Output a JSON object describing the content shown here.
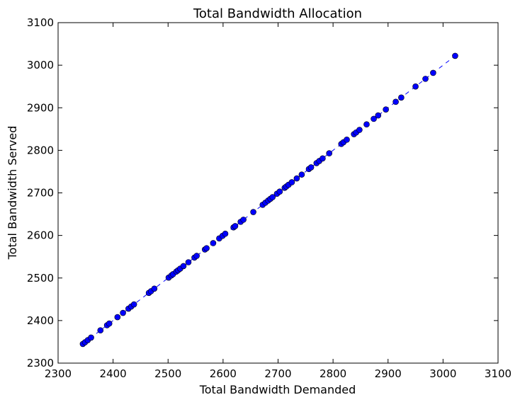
{
  "chart_data": {
    "type": "scatter",
    "title": "Total Bandwidth Allocation",
    "xlabel": "Total Bandwidth Demanded",
    "ylabel": "Total Bandwidth Served",
    "xlim": [
      2300,
      3100
    ],
    "ylim": [
      2300,
      3100
    ],
    "xticks": [
      "2300",
      "2400",
      "2500",
      "2600",
      "2700",
      "2800",
      "2900",
      "3000",
      "3100"
    ],
    "yticks": [
      "2300",
      "2400",
      "2500",
      "2600",
      "2700",
      "2800",
      "2900",
      "3000",
      "3100"
    ],
    "grid": false,
    "legend": "none",
    "reference_line": {
      "style": "dashed",
      "color": "#0000ff",
      "from": [
        2345,
        2345
      ],
      "to": [
        3022,
        3022
      ]
    },
    "series": [
      {
        "marker": "circle",
        "color": "#0000ff",
        "x": [
          2345,
          2349,
          2354,
          2360,
          2377,
          2389,
          2393,
          2408,
          2418,
          2428,
          2433,
          2438,
          2465,
          2469,
          2475,
          2501,
          2506,
          2509,
          2515,
          2518,
          2522,
          2528,
          2537,
          2548,
          2552,
          2567,
          2570,
          2582,
          2593,
          2599,
          2604,
          2619,
          2622,
          2632,
          2637,
          2655,
          2672,
          2677,
          2682,
          2686,
          2690,
          2698,
          2703,
          2712,
          2715,
          2719,
          2725,
          2734,
          2743,
          2756,
          2760,
          2770,
          2775,
          2781,
          2793,
          2815,
          2819,
          2825,
          2838,
          2842,
          2848,
          2861,
          2874,
          2882,
          2896,
          2914,
          2924,
          2950,
          2968,
          2982,
          3022
        ],
        "y": [
          2345,
          2349,
          2354,
          2360,
          2377,
          2389,
          2393,
          2408,
          2418,
          2428,
          2433,
          2438,
          2465,
          2469,
          2475,
          2501,
          2506,
          2509,
          2515,
          2518,
          2522,
          2528,
          2537,
          2548,
          2552,
          2567,
          2570,
          2582,
          2593,
          2599,
          2604,
          2619,
          2622,
          2632,
          2637,
          2655,
          2672,
          2677,
          2682,
          2686,
          2690,
          2698,
          2703,
          2712,
          2715,
          2719,
          2725,
          2734,
          2743,
          2756,
          2760,
          2770,
          2775,
          2781,
          2793,
          2815,
          2819,
          2825,
          2838,
          2842,
          2848,
          2861,
          2874,
          2882,
          2896,
          2914,
          2924,
          2950,
          2968,
          2982,
          3022
        ]
      }
    ]
  }
}
